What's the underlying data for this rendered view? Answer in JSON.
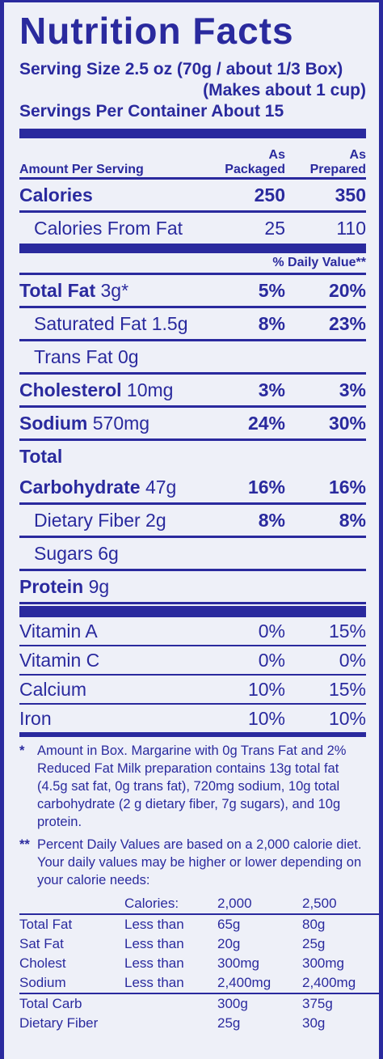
{
  "title": "Nutrition Facts",
  "serving_size": "Serving Size 2.5 oz (70g / about 1/3 Box)",
  "serving_note": "(Makes about 1 cup)",
  "servings": "Servings Per Container About 15",
  "columns": {
    "amount": "Amount Per Serving",
    "packaged": [
      "As",
      "Packaged"
    ],
    "prepared": [
      "As",
      "Prepared"
    ]
  },
  "calories": [
    {
      "name": "Calories",
      "packaged": "250",
      "prepared": "350"
    },
    {
      "label": "Calories From Fat",
      "packaged": "25",
      "prepared": "110"
    }
  ],
  "daily_value_header": "% Daily Value**",
  "nutrients": [
    {
      "name": "Total Fat",
      "amount": "3g*",
      "packaged": "5%",
      "prepared": "20%"
    },
    {
      "label": "Saturated Fat 1.5g",
      "packaged": "8%",
      "prepared": "23%"
    },
    {
      "label": "Trans Fat 0g"
    },
    {
      "name": "Cholesterol",
      "amount": "10mg",
      "packaged": "3%",
      "prepared": "3%"
    },
    {
      "name": "Sodium",
      "amount": "570mg",
      "packaged": "24%",
      "prepared": "30%"
    },
    {
      "name": "Total"
    },
    {
      "name": "Carbohydrate",
      "amount": "47g",
      "packaged": "16%",
      "prepared": "16%"
    },
    {
      "label": "Dietary Fiber 2g",
      "packaged": "8%",
      "prepared": "8%"
    },
    {
      "label": "Sugars 6g"
    },
    {
      "name": "Protein",
      "amount": "9g"
    }
  ],
  "vitamins": [
    {
      "label": "Vitamin A",
      "packaged": "0%",
      "prepared": "15%"
    },
    {
      "label": "Vitamin C",
      "packaged": "0%",
      "prepared": "0%"
    },
    {
      "label": "Calcium",
      "packaged": "10%",
      "prepared": "15%"
    },
    {
      "label": "Iron",
      "packaged": "10%",
      "prepared": "10%"
    }
  ],
  "footnotes": [
    {
      "mark": "*",
      "text": "Amount in Box. Margarine with 0g Trans Fat and 2% Reduced Fat Milk preparation contains 13g total fat (4.5g sat fat, 0g trans fat), 720mg sodium, 10g total carbohydrate (2 g dietary fiber, 7g sugars), and 10g protein."
    },
    {
      "mark": "**",
      "text": "Percent Daily Values are based on a 2,000 calorie diet. Your daily values may be higher or lower depending on your calorie needs:"
    }
  ],
  "daily_values": {
    "header": [
      "Calories:",
      "2,000",
      "2,500"
    ],
    "rows": [
      [
        "Total Fat",
        "Less than",
        "65g",
        "80g"
      ],
      [
        "Sat Fat",
        "Less than",
        "20g",
        "25g"
      ],
      [
        "Cholest",
        "Less than",
        "300mg",
        "300mg"
      ],
      [
        "Sodium",
        "Less than",
        "2,400mg",
        "2,400mg"
      ],
      [
        "Total Carb",
        "",
        "300g",
        "375g"
      ],
      [
        "Dietary Fiber",
        "",
        "25g",
        "30g"
      ]
    ]
  }
}
